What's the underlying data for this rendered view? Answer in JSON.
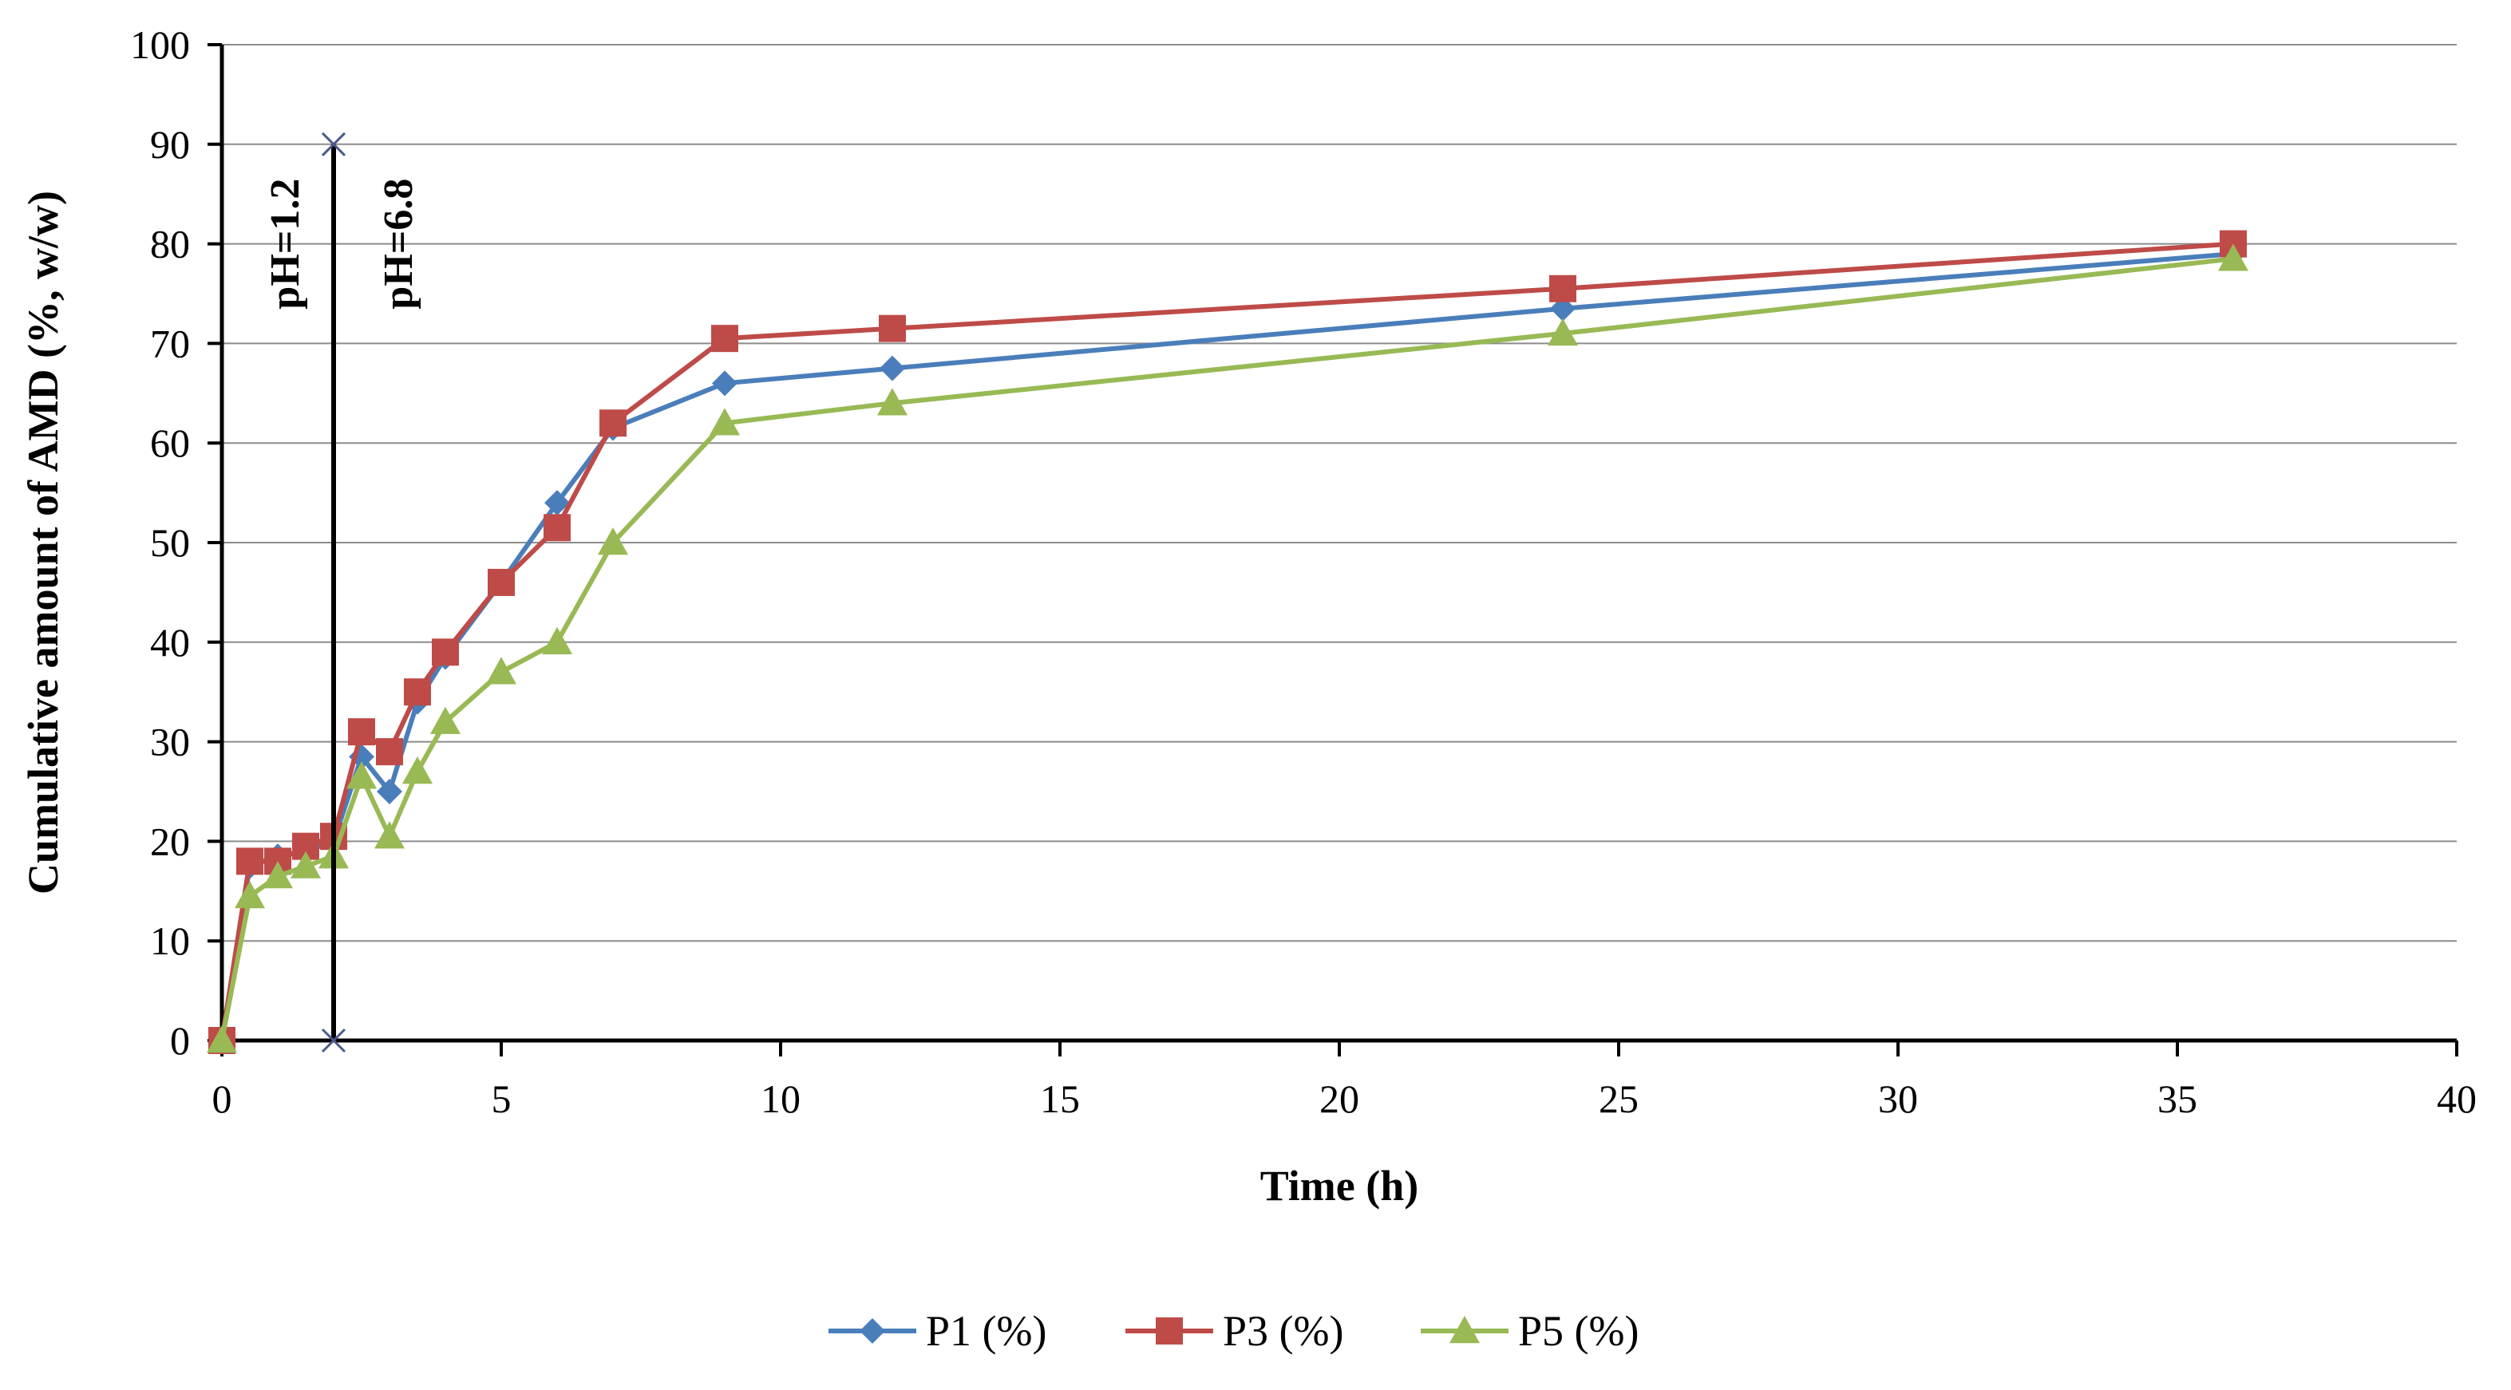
{
  "chart_data": {
    "type": "line",
    "title": "",
    "xlabel": "Time (h)",
    "ylabel": "Cumulative amount of AMD (%, w/w)",
    "xlim": [
      0,
      40
    ],
    "ylim": [
      0,
      100
    ],
    "xticks": [
      0,
      5,
      10,
      15,
      20,
      25,
      30,
      35,
      40
    ],
    "yticks": [
      0,
      10,
      20,
      30,
      40,
      50,
      60,
      70,
      80,
      90,
      100
    ],
    "grid": "horizontal",
    "legend_position": "bottom",
    "series": [
      {
        "name": "P1 (%)",
        "color": "#4a7ebb",
        "marker": "diamond",
        "x": [
          0,
          0.5,
          1,
          1.5,
          2,
          2.5,
          3,
          3.5,
          4,
          5,
          6,
          7,
          9,
          12,
          24,
          36
        ],
        "y": [
          0,
          17.5,
          18.5,
          19,
          20,
          28.5,
          25,
          34,
          38.5,
          46,
          54,
          61.5,
          66,
          67.5,
          73.5,
          79
        ]
      },
      {
        "name": "P3 (%)",
        "color": "#be4b48",
        "marker": "square",
        "x": [
          0,
          0.5,
          1,
          1.5,
          2,
          2.5,
          3,
          3.5,
          4,
          5,
          6,
          7,
          9,
          12,
          24,
          36
        ],
        "y": [
          0,
          18,
          18,
          19.5,
          20.5,
          31,
          29,
          35,
          39,
          46,
          51.5,
          62,
          70.5,
          71.5,
          75.5,
          80
        ]
      },
      {
        "name": "P5 (%)",
        "color": "#98b954",
        "marker": "triangle",
        "x": [
          0,
          0.5,
          1,
          1.5,
          2,
          2.5,
          3,
          3.5,
          4,
          5,
          6,
          7,
          9,
          12,
          24,
          36
        ],
        "y": [
          0,
          14.5,
          16.5,
          17.5,
          18.5,
          26.5,
          20.5,
          27,
          32,
          37,
          40,
          50,
          62,
          64,
          71,
          78.5
        ]
      }
    ],
    "annotations": {
      "divider": {
        "x": 2,
        "y_from": 0,
        "y_to": 90
      },
      "left_label": "pH=1.2",
      "right_label": "pH=6.8"
    }
  }
}
